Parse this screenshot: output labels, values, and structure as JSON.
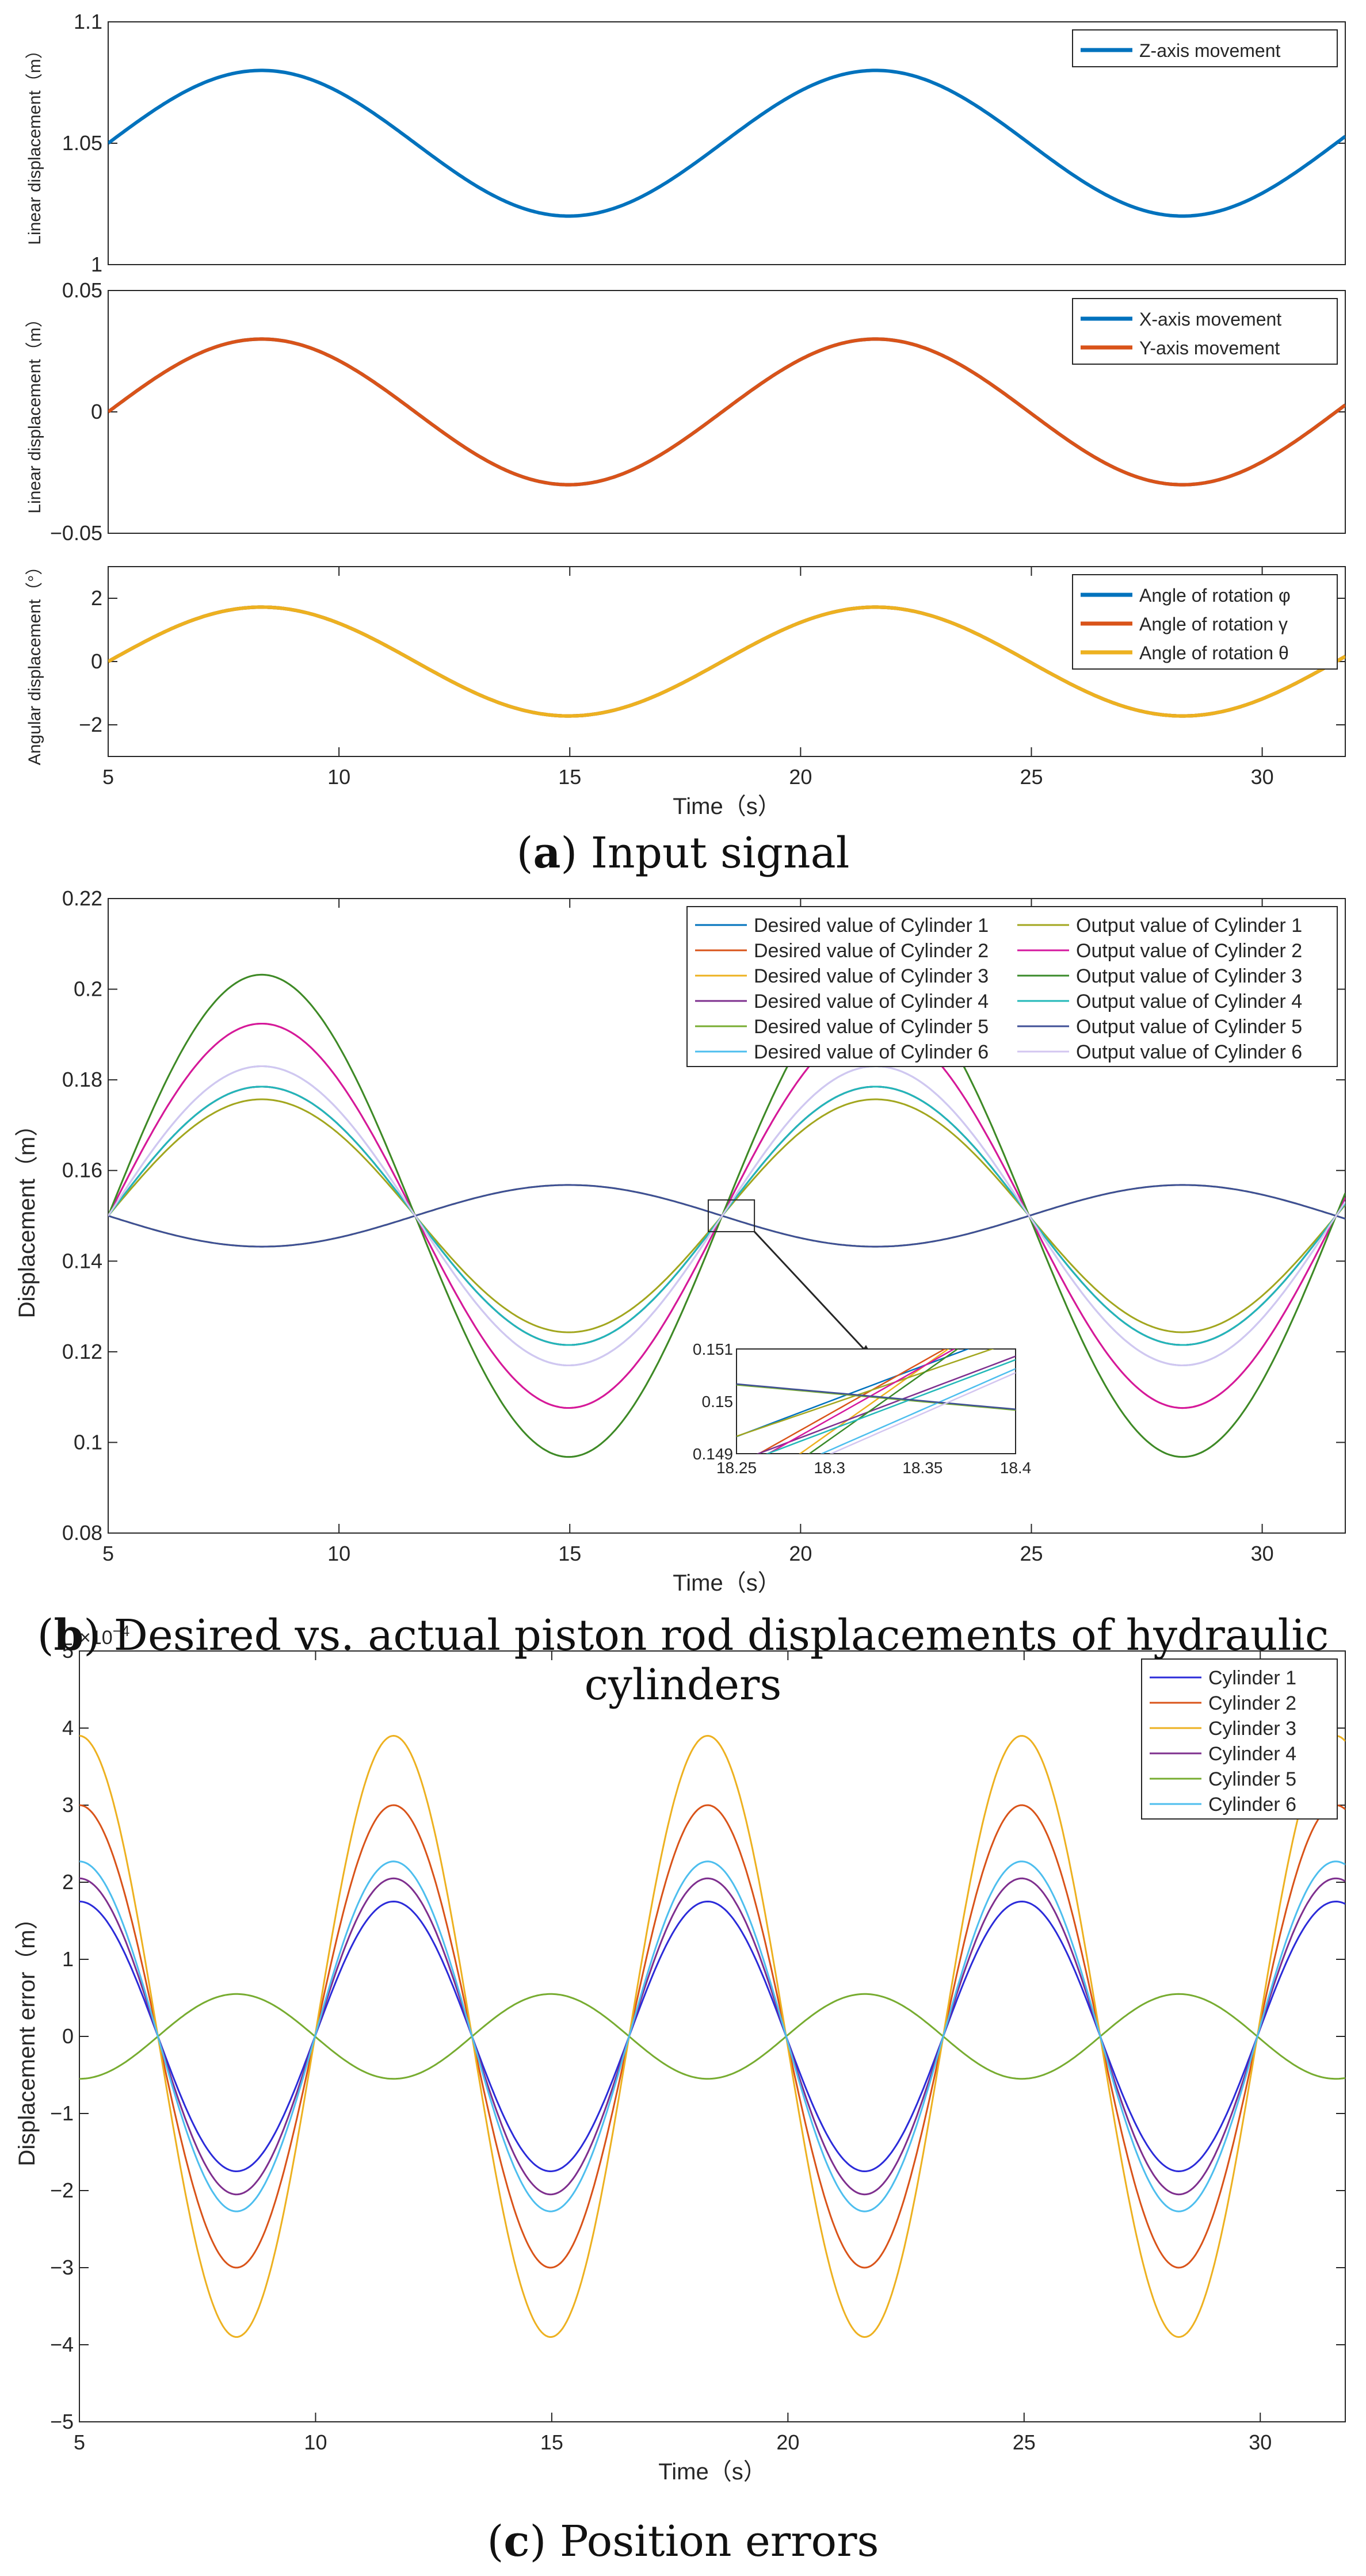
{
  "captions": {
    "a": {
      "letter": "a",
      "text": ") Input signal"
    },
    "b": {
      "letter": "b",
      "text": ") Desired vs. actual piston rod displacements of hydraulic cylinders"
    },
    "c": {
      "letter": "c",
      "text": ") Position errors"
    }
  },
  "colors": {
    "blue": "#0072BD",
    "orange": "#D95319",
    "yellow": "#EDB120",
    "purple": "#7E2F8E",
    "green": "#77AC30",
    "cyan": "#4DBEEE"
  },
  "chart_data": [
    {
      "id": "a1",
      "type": "line",
      "title": "",
      "xlabel": "",
      "ylabel": "Linear displacement（m）",
      "xlim": [
        5,
        31.8
      ],
      "ylim": [
        1,
        1.1
      ],
      "xticks": [],
      "yticks": [
        1,
        1.05,
        1.1
      ],
      "ytick_labels": [
        "1",
        "1.05",
        "1.1"
      ],
      "series": [
        {
          "name": "Z-axis movement",
          "color": "#0072BD",
          "func": {
            "form": "sin",
            "offset": 1.05,
            "amp": 0.03,
            "period": 13.3,
            "t0": 5
          }
        }
      ],
      "legend": [
        "Z-axis movement"
      ],
      "legend_loc": "top-right"
    },
    {
      "id": "a2",
      "type": "line",
      "title": "",
      "xlabel": "",
      "ylabel": "Linear displacement（m）",
      "xlim": [
        5,
        31.8
      ],
      "ylim": [
        -0.05,
        0.05
      ],
      "xticks": [],
      "yticks": [
        -0.05,
        0,
        0.05
      ],
      "ytick_labels": [
        "−0.05",
        "0",
        "0.05"
      ],
      "series": [
        {
          "name": "X-axis movement",
          "color": "#0072BD",
          "func": {
            "form": "sin",
            "offset": 0,
            "amp": 0.03,
            "period": 13.3,
            "t0": 5
          }
        },
        {
          "name": "Y-axis movement",
          "color": "#D95319",
          "func": {
            "form": "sin",
            "offset": 0,
            "amp": 0.03,
            "period": 13.3,
            "t0": 5
          }
        }
      ],
      "legend": [
        "X-axis movement",
        "Y-axis movement"
      ],
      "legend_loc": "top-right"
    },
    {
      "id": "a3",
      "type": "line",
      "title": "",
      "xlabel": "Time（s）",
      "ylabel": "Angular displacement（°）",
      "xlim": [
        5,
        31.8
      ],
      "ylim": [
        -3,
        3
      ],
      "xticks": [
        5,
        10,
        15,
        20,
        25,
        30
      ],
      "yticks": [
        -2,
        0,
        2
      ],
      "ytick_labels": [
        "−2",
        "0",
        "2"
      ],
      "series": [
        {
          "name": "Angle of rotation φ",
          "color": "#0072BD",
          "func": {
            "form": "sin",
            "offset": 0,
            "amp": 1.72,
            "period": 13.3,
            "t0": 5
          }
        },
        {
          "name": "Angle of rotation γ",
          "color": "#D95319",
          "func": {
            "form": "sin",
            "offset": 0,
            "amp": 1.72,
            "period": 13.3,
            "t0": 5
          }
        },
        {
          "name": "Angle of rotation θ",
          "color": "#EDB120",
          "func": {
            "form": "sin",
            "offset": 0,
            "amp": 1.72,
            "period": 13.3,
            "t0": 5
          }
        }
      ],
      "legend": [
        "Angle of rotation φ",
        "Angle of rotation γ",
        "Angle of rotation θ"
      ],
      "legend_loc": "top-right"
    },
    {
      "id": "b",
      "type": "line",
      "title": "",
      "xlabel": "Time（s）",
      "ylabel": "Displacement（m）",
      "xlim": [
        5,
        31.8
      ],
      "ylim": [
        0.08,
        0.22
      ],
      "xticks": [
        5,
        10,
        15,
        20,
        25,
        30
      ],
      "yticks": [
        0.08,
        0.1,
        0.12,
        0.14,
        0.16,
        0.18,
        0.2,
        0.22
      ],
      "ytick_labels": [
        "0.08",
        "0.1",
        "0.12",
        "0.14",
        "0.16",
        "0.18",
        "0.2",
        "0.22"
      ],
      "series": [
        {
          "name": "Desired value of Cylinder 1",
          "color": "#0072BD",
          "func": {
            "form": "sin",
            "offset": 0.15,
            "amp": 0.0285,
            "period": 13.3,
            "t0": 5
          }
        },
        {
          "name": "Desired value of Cylinder 2",
          "color": "#D95319",
          "func": {
            "form": "sin",
            "offset": 0.15,
            "amp": 0.0424,
            "period": 13.3,
            "t0": 5
          }
        },
        {
          "name": "Desired value of Cylinder 3",
          "color": "#EDB120",
          "func": {
            "form": "sin",
            "offset": 0.15,
            "amp": 0.0532,
            "period": 13.3,
            "t0": 5
          }
        },
        {
          "name": "Desired value of Cylinder 4",
          "color": "#7E2F8E",
          "func": {
            "form": "sin",
            "offset": 0.15,
            "amp": 0.0285,
            "period": 13.3,
            "t0": 5
          }
        },
        {
          "name": "Desired value of Cylinder 5",
          "color": "#77AC30",
          "func": {
            "form": "sin",
            "offset": 0.15,
            "amp": -0.0068,
            "period": 13.3,
            "t0": 5
          }
        },
        {
          "name": "Desired value of Cylinder 6",
          "color": "#4DBEEE",
          "func": {
            "form": "sin",
            "offset": 0.15,
            "amp": 0.033,
            "period": 13.3,
            "t0": 5
          }
        },
        {
          "name": "Output value of Cylinder 1",
          "color": "#A2A61E",
          "func": {
            "form": "sin",
            "offset": 0.15,
            "amp": 0.0257,
            "period": 13.3,
            "t0": 5
          }
        },
        {
          "name": "Output value of Cylinder 2",
          "color": "#D5179E",
          "func": {
            "form": "sin",
            "offset": 0.15,
            "amp": 0.0424,
            "period": 13.3,
            "t0": 5
          }
        },
        {
          "name": "Output value of Cylinder 3",
          "color": "#3A8A2A",
          "func": {
            "form": "sin",
            "offset": 0.15,
            "amp": 0.0532,
            "period": 13.3,
            "t0": 5
          }
        },
        {
          "name": "Output value of Cylinder 4",
          "color": "#22B8B8",
          "func": {
            "form": "sin",
            "offset": 0.15,
            "amp": 0.0285,
            "period": 13.3,
            "t0": 5
          }
        },
        {
          "name": "Output value of Cylinder 5",
          "color": "#3F4F96",
          "func": {
            "form": "sin",
            "offset": 0.15,
            "amp": -0.0068,
            "period": 13.3,
            "t0": 5
          }
        },
        {
          "name": "Output value of Cylinder 6",
          "color": "#D3C6F0",
          "func": {
            "form": "sin",
            "offset": 0.15,
            "amp": 0.033,
            "period": 13.3,
            "t0": 5
          }
        }
      ],
      "legend": [
        "Desired value of Cylinder 1",
        "Output value of Cylinder 1",
        "Desired value of Cylinder 2",
        "Output value of Cylinder 2",
        "Desired value of Cylinder 3",
        "Output value of Cylinder 3",
        "Desired value of Cylinder 4",
        "Output value of Cylinder 4",
        "Desired value of Cylinder 5",
        "Output value of Cylinder 5",
        "Desired value of Cylinder 6",
        "Output value of Cylinder 6"
      ],
      "legend_loc": "top-right",
      "inset": {
        "xlim": [
          18.25,
          18.4
        ],
        "ylim": [
          0.149,
          0.151
        ],
        "xticks": [
          18.25,
          18.3,
          18.35,
          18.4
        ],
        "xtick_labels": [
          "18.25",
          "18.3",
          "18.35",
          "18.4"
        ],
        "yticks": [
          0.149,
          0.15,
          0.151
        ],
        "ytick_labels": [
          "0.149",
          "0.15",
          "0.151"
        ],
        "zoom_box_x": [
          18.0,
          19.0
        ],
        "zoom_box_y": [
          0.1465,
          0.1535
        ]
      }
    },
    {
      "id": "c",
      "type": "line",
      "title": "",
      "xlabel": "Time（s）",
      "ylabel": "Displacement error（m）",
      "xlim": [
        5,
        31.8
      ],
      "ylim": [
        -5,
        5
      ],
      "y_scale_label": "×10",
      "y_scale_exp": "−4",
      "xticks": [
        5,
        10,
        15,
        20,
        25,
        30
      ],
      "yticks": [
        -5,
        -4,
        -3,
        -2,
        -1,
        0,
        1,
        2,
        3,
        4,
        5
      ],
      "ytick_labels": [
        "−5",
        "−4",
        "−3",
        "−2",
        "−1",
        "0",
        "1",
        "2",
        "3",
        "4",
        "5"
      ],
      "series": [
        {
          "name": "Cylinder 1",
          "color": "#2B2BD9",
          "func": {
            "form": "cos",
            "offset": 0,
            "amp": 1.75,
            "period": 6.65,
            "t0": 5
          }
        },
        {
          "name": "Cylinder 2",
          "color": "#D95319",
          "func": {
            "form": "cos",
            "offset": 0,
            "amp": 3.0,
            "period": 6.65,
            "t0": 5
          }
        },
        {
          "name": "Cylinder 3",
          "color": "#EDB120",
          "func": {
            "form": "cos",
            "offset": 0,
            "amp": 3.9,
            "period": 6.65,
            "t0": 5
          }
        },
        {
          "name": "Cylinder 4",
          "color": "#7E2F8E",
          "func": {
            "form": "cos",
            "offset": 0,
            "amp": 2.05,
            "period": 6.65,
            "t0": 5
          }
        },
        {
          "name": "Cylinder 5",
          "color": "#77AC30",
          "func": {
            "form": "cos",
            "offset": 0,
            "amp": -0.55,
            "period": 6.65,
            "t0": 5
          }
        },
        {
          "name": "Cylinder 6",
          "color": "#4DBEEE",
          "func": {
            "form": "cos",
            "offset": 0,
            "amp": 2.27,
            "period": 6.65,
            "t0": 5
          }
        }
      ],
      "legend": [
        "Cylinder 1",
        "Cylinder 2",
        "Cylinder 3",
        "Cylinder 4",
        "Cylinder 5",
        "Cylinder 6"
      ],
      "legend_loc": "top-right"
    }
  ]
}
